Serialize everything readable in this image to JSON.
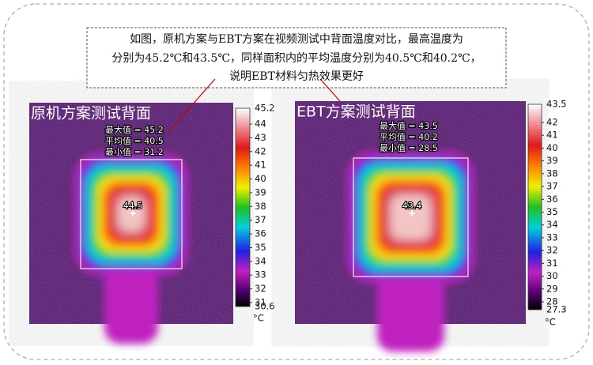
{
  "callout": {
    "lines": [
      "如图，原机方案与EBT方案在视频测试中背面温度对比，最高温度为",
      "分别为45.2℃和43.5℃，同样面积内的平均温度分别为40.5℃和40.2℃，",
      "说明EBT材料匀热效果更好"
    ]
  },
  "panels": [
    {
      "title": "原机方案测试背面",
      "stats": [
        "最大值 = 45.2",
        "平均值 = 40.5",
        "最小值 = 31.2"
      ],
      "spot": "44.5",
      "scale": {
        "max": "45.2",
        "ticks": [
          "44",
          "43",
          "42",
          "41",
          "40",
          "39",
          "38",
          "37",
          "36",
          "35",
          "34",
          "33",
          "32",
          "31"
        ],
        "min": "30.6",
        "unit": "°C"
      }
    },
    {
      "title": "EBT方案测试背面",
      "stats": [
        "最大值 = 43.5",
        "平均值 = 40.2",
        "最小值 = 28.5"
      ],
      "spot": "43.4",
      "scale": {
        "max": "43.5",
        "ticks": [
          "42",
          "41",
          "40",
          "39",
          "38",
          "37",
          "36",
          "35",
          "34",
          "33",
          "32",
          "31",
          "30",
          "29",
          "28"
        ],
        "min": "27.3",
        "unit": "°C"
      }
    }
  ]
}
